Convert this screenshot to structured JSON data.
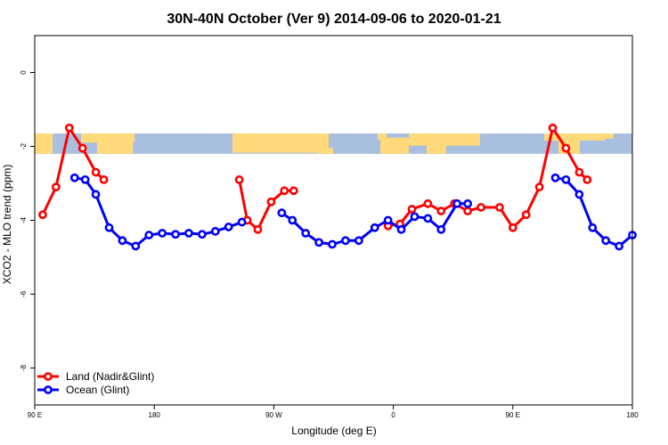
{
  "chart_data": {
    "type": "line",
    "title": "30N-40N October (Ver 9)   2014-09-06 to 2020-01-21",
    "xlabel": "Longitude (deg E)",
    "ylabel": "XCO2 - MLO trend (ppm)",
    "xlim": [
      90,
      540
    ],
    "ylim": [
      -9,
      1
    ],
    "x_ticks": [
      {
        "value": 90,
        "label": "90 E"
      },
      {
        "value": 180,
        "label": "180"
      },
      {
        "value": 270,
        "label": "90 W"
      },
      {
        "value": 360,
        "label": "0"
      },
      {
        "value": 450,
        "label": "90 E"
      },
      {
        "value": 540,
        "label": "180"
      }
    ],
    "y_ticks": [
      {
        "value": 0,
        "label": "0"
      },
      {
        "value": -2,
        "label": "-2"
      },
      {
        "value": -4,
        "label": "-4"
      },
      {
        "value": -6,
        "label": "-6"
      },
      {
        "value": -8,
        "label": "-8"
      }
    ],
    "map_band": {
      "y_top": -1.65,
      "y_bottom": -2.2,
      "land_color": "#FFD97A",
      "ocean_color": "#A8BFE0"
    },
    "series": [
      {
        "name": "Land (Nadir&Glint)",
        "color": "#FF0000",
        "segments": [
          [
            [
              96,
              -3.85
            ],
            [
              106,
              -3.1
            ],
            [
              116,
              -1.5
            ],
            [
              126,
              -2.05
            ],
            [
              136,
              -2.7
            ],
            [
              142,
              -2.9
            ]
          ],
          [
            [
              244,
              -2.9
            ],
            [
              250,
              -4.0
            ],
            [
              258,
              -4.25
            ],
            [
              268,
              -3.5
            ],
            [
              278,
              -3.2
            ],
            [
              285,
              -3.2
            ]
          ],
          [
            [
              356,
              -4.15
            ],
            [
              365,
              -4.1
            ],
            [
              374,
              -3.7
            ],
            [
              386,
              -3.55
            ],
            [
              396,
              -3.75
            ],
            [
              406,
              -3.55
            ],
            [
              416,
              -3.75
            ],
            [
              426,
              -3.65
            ],
            [
              440,
              -3.65
            ],
            [
              450,
              -4.2
            ],
            [
              460,
              -3.85
            ],
            [
              470,
              -3.1
            ],
            [
              480,
              -1.5
            ],
            [
              490,
              -2.05
            ],
            [
              500,
              -2.7
            ],
            [
              506,
              -2.9
            ]
          ]
        ]
      },
      {
        "name": "Ocean (Glint)",
        "color": "#0000FF",
        "segments": [
          [
            [
              120,
              -2.85
            ],
            [
              128,
              -2.9
            ],
            [
              136,
              -3.3
            ],
            [
              146,
              -4.2
            ],
            [
              156,
              -4.55
            ],
            [
              166,
              -4.7
            ],
            [
              176,
              -4.4
            ],
            [
              186,
              -4.35
            ],
            [
              196,
              -4.38
            ],
            [
              206,
              -4.35
            ],
            [
              216,
              -4.38
            ],
            [
              226,
              -4.3
            ],
            [
              236,
              -4.18
            ],
            [
              246,
              -4.05
            ]
          ],
          [
            [
              276,
              -3.8
            ],
            [
              284,
              -4.0
            ],
            [
              294,
              -4.35
            ],
            [
              304,
              -4.6
            ],
            [
              314,
              -4.65
            ],
            [
              324,
              -4.55
            ],
            [
              334,
              -4.55
            ],
            [
              346,
              -4.2
            ],
            [
              356,
              -4.0
            ],
            [
              366,
              -4.25
            ],
            [
              376,
              -3.9
            ],
            [
              386,
              -3.95
            ],
            [
              396,
              -4.25
            ],
            [
              408,
              -3.55
            ],
            [
              416,
              -3.55
            ]
          ],
          [
            [
              482,
              -2.85
            ],
            [
              490,
              -2.9
            ],
            [
              500,
              -3.3
            ],
            [
              510,
              -4.2
            ],
            [
              520,
              -4.55
            ],
            [
              530,
              -4.7
            ],
            [
              540,
              -4.4
            ]
          ]
        ]
      }
    ],
    "legend": {
      "position": "bottom-left"
    }
  }
}
